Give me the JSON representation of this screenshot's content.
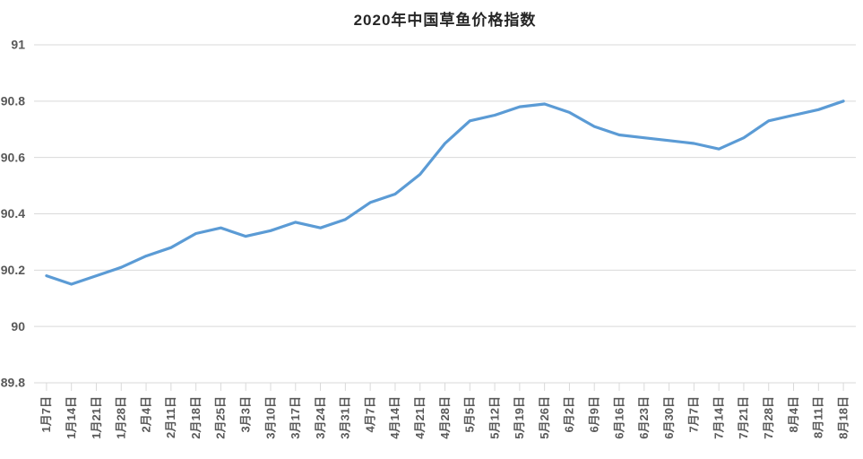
{
  "chart": {
    "colors": {
      "line": "#5b9bd5",
      "gridline": "#d9d9d9",
      "axis_label": "#595959",
      "title": "#262626",
      "background": "#ffffff"
    }
  },
  "chart_data": {
    "type": "line",
    "title": "2020年中国草鱼价格指数",
    "categories": [
      "1月7日",
      "1月14日",
      "1月21日",
      "1月28日",
      "2月4日",
      "2月11日",
      "2月18日",
      "2月25日",
      "3月3日",
      "3月10日",
      "3月17日",
      "3月24日",
      "3月31日",
      "4月7日",
      "4月14日",
      "4月21日",
      "4月28日",
      "5月5日",
      "5月12日",
      "5月19日",
      "5月26日",
      "6月2日",
      "6月9日",
      "6月16日",
      "6月23日",
      "6月30日",
      "7月7日",
      "7月14日",
      "7月21日",
      "7月28日",
      "8月4日",
      "8月11日",
      "8月18日"
    ],
    "values": [
      90.18,
      90.15,
      90.18,
      90.21,
      90.25,
      90.28,
      90.33,
      90.35,
      90.32,
      90.34,
      90.37,
      90.35,
      90.38,
      90.44,
      90.47,
      90.54,
      90.65,
      90.73,
      90.75,
      90.78,
      90.79,
      90.76,
      90.71,
      90.68,
      90.67,
      90.66,
      90.65,
      90.63,
      90.67,
      90.73,
      90.75,
      90.77,
      90.8
    ],
    "xlabel": "",
    "ylabel": "",
    "ylim": [
      89.8,
      91
    ],
    "yticks": [
      89.8,
      90,
      90.2,
      90.4,
      90.6,
      90.8,
      91
    ],
    "grid": "horizontal",
    "legend": "none",
    "x_label_rotation": -90
  }
}
